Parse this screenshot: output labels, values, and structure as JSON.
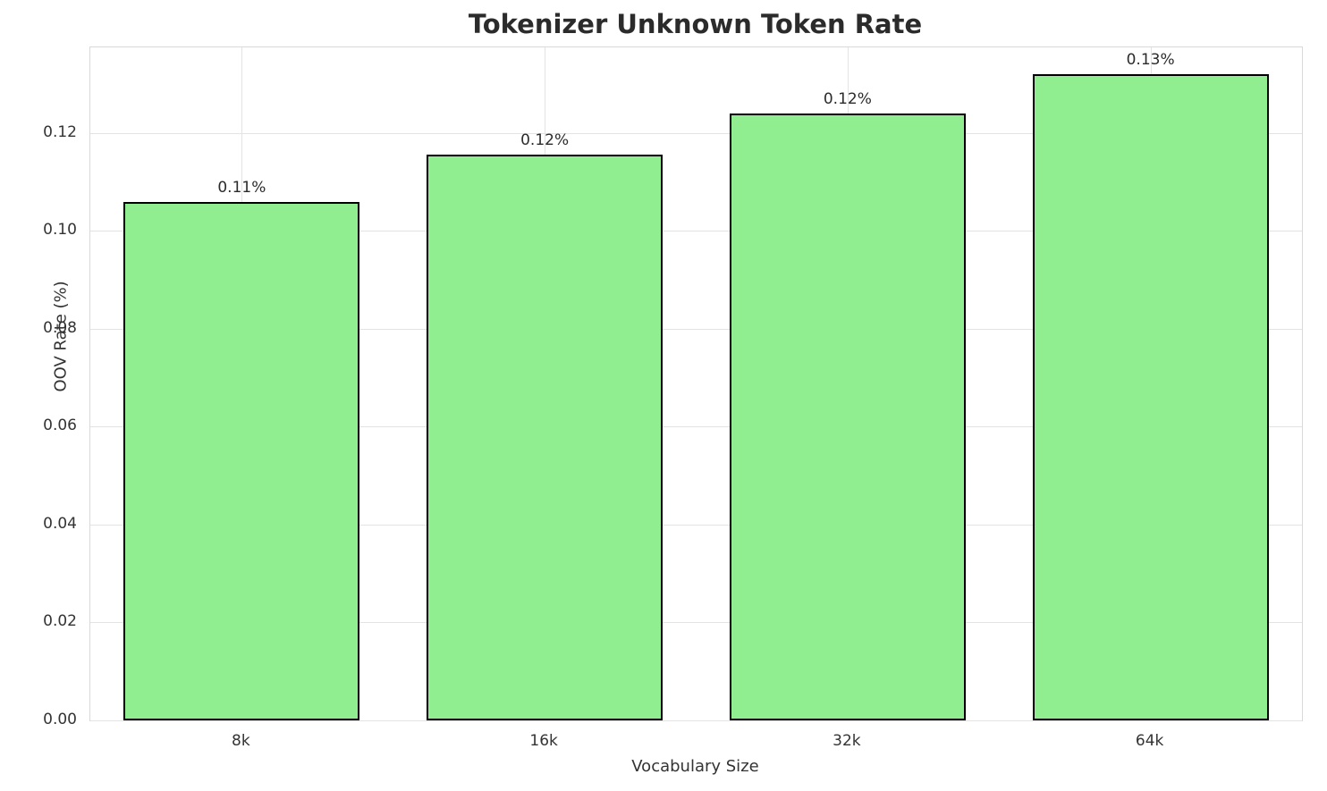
{
  "chart_data": {
    "type": "bar",
    "title": "Tokenizer Unknown Token Rate",
    "xlabel": "Vocabulary Size",
    "ylabel": "OOV Rate (%)",
    "categories": [
      "8k",
      "16k",
      "32k",
      "64k"
    ],
    "values": [
      0.106,
      0.1155,
      0.124,
      0.132
    ],
    "bar_labels": [
      "0.11%",
      "0.12%",
      "0.12%",
      "0.13%"
    ],
    "ylim": [
      0,
      0.1375
    ],
    "yticks": [
      0.0,
      0.02,
      0.04,
      0.06,
      0.08,
      0.1,
      0.12
    ],
    "ytick_labels": [
      "0.00",
      "0.02",
      "0.04",
      "0.06",
      "0.08",
      "0.10",
      "0.12"
    ],
    "grid": true,
    "legend_position": "none",
    "bar_color": "#90EE90",
    "bar_edge_color": "#000000",
    "bar_width_fraction": 0.78
  }
}
